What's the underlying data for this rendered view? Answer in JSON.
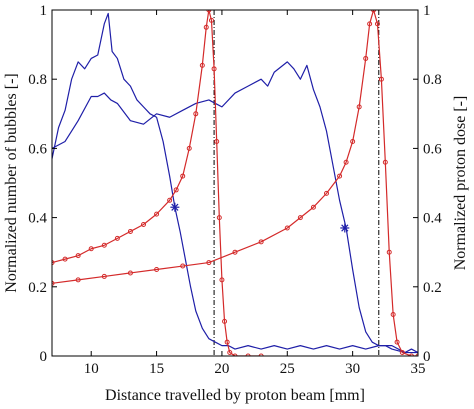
{
  "chart_data": {
    "type": "line",
    "title": "",
    "xlabel": "Distance travelled by proton beam [mm]",
    "ylabel": "Normalized number of bubbles [-]",
    "ylabel_right": "Normalized proton dose [-]",
    "xlim": [
      7,
      35
    ],
    "ylim": [
      0,
      1
    ],
    "ylim_right": [
      0,
      1
    ],
    "xticks": [
      "10",
      "15",
      "20",
      "25",
      "30",
      "35"
    ],
    "yticks": [
      "0",
      "0.2",
      "0.4",
      "0.6",
      "0.8",
      "1"
    ],
    "yticks_right": [
      "0",
      "0.2",
      "0.4",
      "0.6",
      "0.8",
      "1"
    ],
    "grid": false,
    "colors": {
      "bubbles": "#1f1fa8",
      "dose": "#d42a2a",
      "marker_line": "#000000"
    },
    "series": [
      {
        "kind": "bubbles",
        "x": [
          7.0,
          7.5,
          8.0,
          8.5,
          9.0,
          9.5,
          10.0,
          10.5,
          11.0,
          11.3,
          11.6,
          12.0,
          12.5,
          13.0,
          13.5,
          14.0,
          14.5,
          15.0,
          15.5,
          16.0,
          16.4,
          16.8,
          17.2,
          17.6,
          18.0,
          18.5,
          19.0,
          19.5,
          20.0,
          20.5,
          21.0,
          22.0,
          23.0,
          24.0,
          25.0,
          26.0,
          27.0,
          28.0,
          29.0,
          30.0,
          31.0,
          32.0,
          33.0,
          34.0,
          34.5,
          35.0
        ],
        "y": [
          0.57,
          0.66,
          0.71,
          0.8,
          0.85,
          0.83,
          0.86,
          0.87,
          0.96,
          0.99,
          0.88,
          0.86,
          0.8,
          0.78,
          0.74,
          0.72,
          0.7,
          0.69,
          0.62,
          0.52,
          0.43,
          0.36,
          0.28,
          0.2,
          0.13,
          0.08,
          0.05,
          0.04,
          0.03,
          0.03,
          0.02,
          0.03,
          0.02,
          0.03,
          0.02,
          0.03,
          0.02,
          0.03,
          0.02,
          0.03,
          0.02,
          0.03,
          0.03,
          0.01,
          0.02,
          0.01
        ]
      },
      {
        "kind": "bubbles",
        "x": [
          7.0,
          8.0,
          9.0,
          10.0,
          10.5,
          11.0,
          11.5,
          12.0,
          13.0,
          14.0,
          15.0,
          16.0,
          17.0,
          18.0,
          19.0,
          19.5,
          20.0,
          21.0,
          22.0,
          23.0,
          23.5,
          24.0,
          25.0,
          25.5,
          26.0,
          26.5,
          27.0,
          27.5,
          28.0,
          28.5,
          29.0,
          29.5,
          30.0,
          30.5,
          31.0,
          31.5,
          32.0,
          32.5,
          33.0,
          34.0,
          35.0
        ],
        "y": [
          0.6,
          0.62,
          0.68,
          0.75,
          0.75,
          0.76,
          0.74,
          0.73,
          0.68,
          0.67,
          0.7,
          0.69,
          0.71,
          0.73,
          0.74,
          0.73,
          0.72,
          0.76,
          0.78,
          0.8,
          0.78,
          0.82,
          0.85,
          0.83,
          0.8,
          0.84,
          0.77,
          0.72,
          0.65,
          0.55,
          0.45,
          0.37,
          0.25,
          0.14,
          0.07,
          0.04,
          0.03,
          0.03,
          0.02,
          0.01,
          0.01
        ]
      },
      {
        "kind": "dose",
        "x": [
          7.0,
          8.0,
          9.0,
          10.0,
          11.0,
          12.0,
          13.0,
          14.0,
          15.0,
          16.0,
          16.5,
          17.0,
          17.5,
          18.0,
          18.5,
          18.8,
          19.0,
          19.2,
          19.4,
          19.6,
          19.8,
          20.0,
          20.2,
          20.4,
          20.6,
          21.0,
          22.0,
          23.0
        ],
        "y": [
          0.27,
          0.28,
          0.29,
          0.31,
          0.32,
          0.34,
          0.36,
          0.38,
          0.41,
          0.45,
          0.48,
          0.52,
          0.6,
          0.7,
          0.84,
          0.95,
          1.0,
          0.97,
          0.83,
          0.62,
          0.4,
          0.22,
          0.1,
          0.04,
          0.01,
          0.0,
          0.0,
          0.0
        ]
      },
      {
        "kind": "dose",
        "x": [
          7.0,
          9.0,
          11.0,
          13.0,
          15.0,
          17.0,
          19.0,
          21.0,
          23.0,
          25.0,
          26.0,
          27.0,
          28.0,
          29.0,
          29.5,
          30.0,
          30.5,
          31.0,
          31.3,
          31.6,
          31.9,
          32.2,
          32.5,
          32.8,
          33.1,
          33.4,
          33.8,
          34.5,
          35.0
        ],
        "y": [
          0.21,
          0.22,
          0.23,
          0.24,
          0.25,
          0.26,
          0.27,
          0.3,
          0.33,
          0.37,
          0.4,
          0.43,
          0.47,
          0.52,
          0.56,
          0.62,
          0.72,
          0.86,
          0.96,
          1.0,
          0.96,
          0.8,
          0.56,
          0.3,
          0.12,
          0.04,
          0.01,
          0.0,
          0.0
        ]
      }
    ],
    "highlight_points": [
      {
        "x": 16.4,
        "y": 0.43
      },
      {
        "x": 29.4,
        "y": 0.37
      }
    ],
    "dash_dot_lines_x": [
      19.4,
      32.0
    ]
  }
}
